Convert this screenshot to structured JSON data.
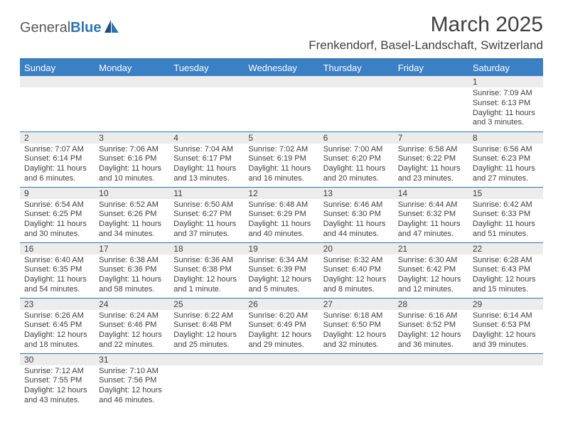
{
  "brand": {
    "name_part1": "General",
    "name_part2": "Blue"
  },
  "title": "March 2025",
  "location": "Frenkendorf, Basel-Landschaft, Switzerland",
  "colors": {
    "header_bg": "#3b7fc4",
    "header_text": "#ffffff",
    "divider": "#2e75b6",
    "daynum_bg": "#ececec",
    "text": "#404040",
    "logo_blue": "#2e75b6"
  },
  "weekday_labels": [
    "Sunday",
    "Monday",
    "Tuesday",
    "Wednesday",
    "Thursday",
    "Friday",
    "Saturday"
  ],
  "weeks": [
    [
      null,
      null,
      null,
      null,
      null,
      null,
      {
        "n": "1",
        "sunrise": "Sunrise: 7:09 AM",
        "sunset": "Sunset: 6:13 PM",
        "daylight": "Daylight: 11 hours and 3 minutes."
      }
    ],
    [
      {
        "n": "2",
        "sunrise": "Sunrise: 7:07 AM",
        "sunset": "Sunset: 6:14 PM",
        "daylight": "Daylight: 11 hours and 6 minutes."
      },
      {
        "n": "3",
        "sunrise": "Sunrise: 7:06 AM",
        "sunset": "Sunset: 6:16 PM",
        "daylight": "Daylight: 11 hours and 10 minutes."
      },
      {
        "n": "4",
        "sunrise": "Sunrise: 7:04 AM",
        "sunset": "Sunset: 6:17 PM",
        "daylight": "Daylight: 11 hours and 13 minutes."
      },
      {
        "n": "5",
        "sunrise": "Sunrise: 7:02 AM",
        "sunset": "Sunset: 6:19 PM",
        "daylight": "Daylight: 11 hours and 16 minutes."
      },
      {
        "n": "6",
        "sunrise": "Sunrise: 7:00 AM",
        "sunset": "Sunset: 6:20 PM",
        "daylight": "Daylight: 11 hours and 20 minutes."
      },
      {
        "n": "7",
        "sunrise": "Sunrise: 6:58 AM",
        "sunset": "Sunset: 6:22 PM",
        "daylight": "Daylight: 11 hours and 23 minutes."
      },
      {
        "n": "8",
        "sunrise": "Sunrise: 6:56 AM",
        "sunset": "Sunset: 6:23 PM",
        "daylight": "Daylight: 11 hours and 27 minutes."
      }
    ],
    [
      {
        "n": "9",
        "sunrise": "Sunrise: 6:54 AM",
        "sunset": "Sunset: 6:25 PM",
        "daylight": "Daylight: 11 hours and 30 minutes."
      },
      {
        "n": "10",
        "sunrise": "Sunrise: 6:52 AM",
        "sunset": "Sunset: 6:26 PM",
        "daylight": "Daylight: 11 hours and 34 minutes."
      },
      {
        "n": "11",
        "sunrise": "Sunrise: 6:50 AM",
        "sunset": "Sunset: 6:27 PM",
        "daylight": "Daylight: 11 hours and 37 minutes."
      },
      {
        "n": "12",
        "sunrise": "Sunrise: 6:48 AM",
        "sunset": "Sunset: 6:29 PM",
        "daylight": "Daylight: 11 hours and 40 minutes."
      },
      {
        "n": "13",
        "sunrise": "Sunrise: 6:46 AM",
        "sunset": "Sunset: 6:30 PM",
        "daylight": "Daylight: 11 hours and 44 minutes."
      },
      {
        "n": "14",
        "sunrise": "Sunrise: 6:44 AM",
        "sunset": "Sunset: 6:32 PM",
        "daylight": "Daylight: 11 hours and 47 minutes."
      },
      {
        "n": "15",
        "sunrise": "Sunrise: 6:42 AM",
        "sunset": "Sunset: 6:33 PM",
        "daylight": "Daylight: 11 hours and 51 minutes."
      }
    ],
    [
      {
        "n": "16",
        "sunrise": "Sunrise: 6:40 AM",
        "sunset": "Sunset: 6:35 PM",
        "daylight": "Daylight: 11 hours and 54 minutes."
      },
      {
        "n": "17",
        "sunrise": "Sunrise: 6:38 AM",
        "sunset": "Sunset: 6:36 PM",
        "daylight": "Daylight: 11 hours and 58 minutes."
      },
      {
        "n": "18",
        "sunrise": "Sunrise: 6:36 AM",
        "sunset": "Sunset: 6:38 PM",
        "daylight": "Daylight: 12 hours and 1 minute."
      },
      {
        "n": "19",
        "sunrise": "Sunrise: 6:34 AM",
        "sunset": "Sunset: 6:39 PM",
        "daylight": "Daylight: 12 hours and 5 minutes."
      },
      {
        "n": "20",
        "sunrise": "Sunrise: 6:32 AM",
        "sunset": "Sunset: 6:40 PM",
        "daylight": "Daylight: 12 hours and 8 minutes."
      },
      {
        "n": "21",
        "sunrise": "Sunrise: 6:30 AM",
        "sunset": "Sunset: 6:42 PM",
        "daylight": "Daylight: 12 hours and 12 minutes."
      },
      {
        "n": "22",
        "sunrise": "Sunrise: 6:28 AM",
        "sunset": "Sunset: 6:43 PM",
        "daylight": "Daylight: 12 hours and 15 minutes."
      }
    ],
    [
      {
        "n": "23",
        "sunrise": "Sunrise: 6:26 AM",
        "sunset": "Sunset: 6:45 PM",
        "daylight": "Daylight: 12 hours and 18 minutes."
      },
      {
        "n": "24",
        "sunrise": "Sunrise: 6:24 AM",
        "sunset": "Sunset: 6:46 PM",
        "daylight": "Daylight: 12 hours and 22 minutes."
      },
      {
        "n": "25",
        "sunrise": "Sunrise: 6:22 AM",
        "sunset": "Sunset: 6:48 PM",
        "daylight": "Daylight: 12 hours and 25 minutes."
      },
      {
        "n": "26",
        "sunrise": "Sunrise: 6:20 AM",
        "sunset": "Sunset: 6:49 PM",
        "daylight": "Daylight: 12 hours and 29 minutes."
      },
      {
        "n": "27",
        "sunrise": "Sunrise: 6:18 AM",
        "sunset": "Sunset: 6:50 PM",
        "daylight": "Daylight: 12 hours and 32 minutes."
      },
      {
        "n": "28",
        "sunrise": "Sunrise: 6:16 AM",
        "sunset": "Sunset: 6:52 PM",
        "daylight": "Daylight: 12 hours and 36 minutes."
      },
      {
        "n": "29",
        "sunrise": "Sunrise: 6:14 AM",
        "sunset": "Sunset: 6:53 PM",
        "daylight": "Daylight: 12 hours and 39 minutes."
      }
    ],
    [
      {
        "n": "30",
        "sunrise": "Sunrise: 7:12 AM",
        "sunset": "Sunset: 7:55 PM",
        "daylight": "Daylight: 12 hours and 43 minutes."
      },
      {
        "n": "31",
        "sunrise": "Sunrise: 7:10 AM",
        "sunset": "Sunset: 7:56 PM",
        "daylight": "Daylight: 12 hours and 46 minutes."
      },
      null,
      null,
      null,
      null,
      null
    ]
  ]
}
